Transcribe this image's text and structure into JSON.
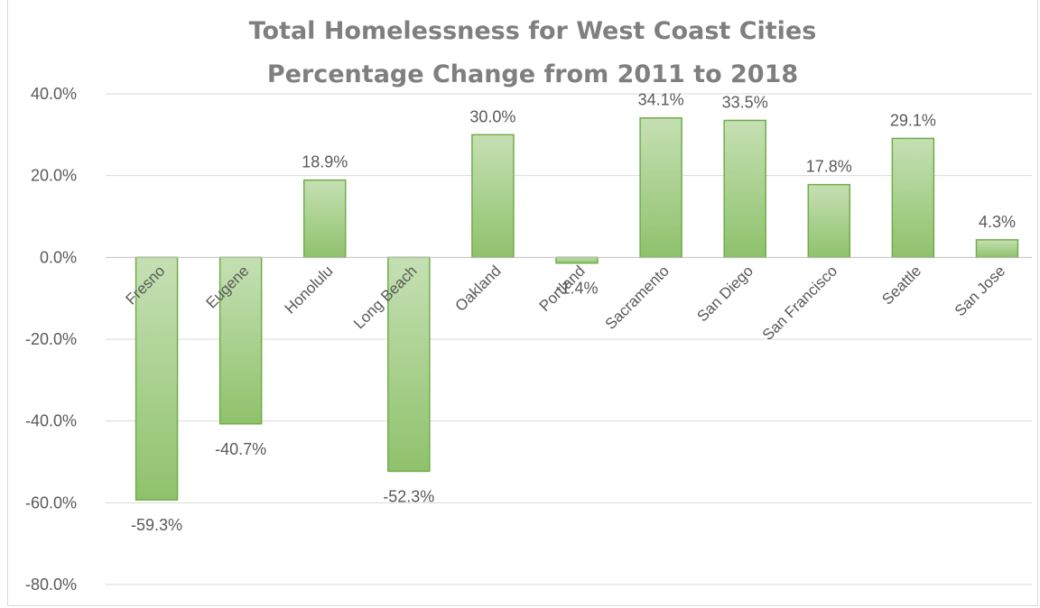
{
  "chart_data": {
    "type": "bar",
    "title_lines": [
      "Total Homelessness for West Coast Cities",
      "Percentage Change from 2011 to 2018"
    ],
    "categories": [
      "Fresno",
      "Eugene",
      "Honolulu",
      "Long Beach",
      "Oakland",
      "Portland",
      "Sacramento",
      "San Diego",
      "San Francisco",
      "Seattle",
      "San Jose"
    ],
    "values": [
      -59.3,
      -40.7,
      18.9,
      -52.3,
      30.0,
      -1.4,
      34.1,
      33.5,
      17.8,
      29.1,
      4.3
    ],
    "data_labels": [
      "-59.3%",
      "-40.7%",
      "18.9%",
      "-52.3%",
      "30.0%",
      "-1.4%",
      "34.1%",
      "33.5%",
      "17.8%",
      "29.1%",
      "4.3%"
    ],
    "y_ticks": [
      40,
      20,
      0,
      -20,
      -40,
      -60,
      -80
    ],
    "y_tick_labels": [
      "40.0%",
      "20.0%",
      "0.0%",
      "-20.0%",
      "-40.0%",
      "-60.0%",
      "-80.0%"
    ],
    "ylim": [
      -80,
      40
    ],
    "grid": true,
    "legend": "none",
    "colors": {
      "bar_stroke": "#70ad47",
      "bar_fill_top": "#c5e0b4",
      "bar_fill_bottom": "#8fc26c",
      "grid": "#d9d9d9",
      "text": "#595959",
      "title": "#7f7f7f"
    }
  }
}
